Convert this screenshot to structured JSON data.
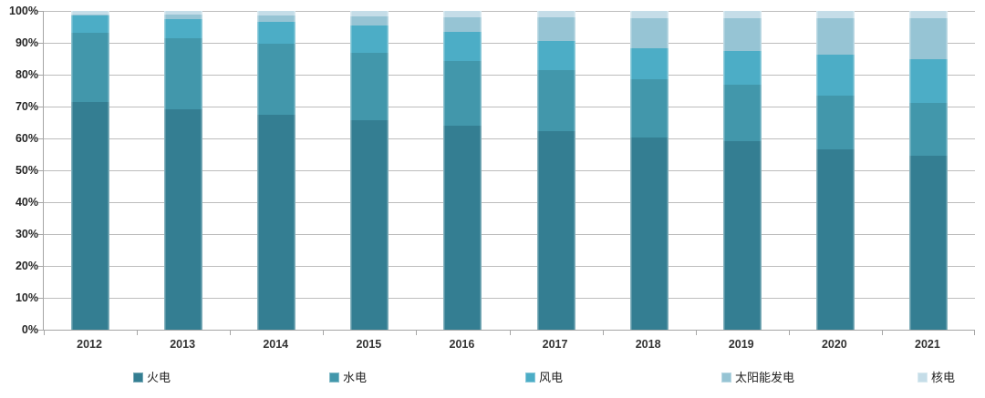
{
  "chart_data": {
    "type": "bar",
    "stacked": true,
    "percent_stacked": true,
    "title": "",
    "xlabel": "",
    "ylabel": "",
    "categories": [
      "2012",
      "2013",
      "2014",
      "2015",
      "2016",
      "2017",
      "2018",
      "2019",
      "2020",
      "2021"
    ],
    "series": [
      {
        "name": "火电",
        "color": "#347e92",
        "values": [
          71.5,
          69.1,
          67.4,
          65.7,
          64.0,
          62.2,
          60.2,
          59.2,
          56.6,
          54.6
        ]
      },
      {
        "name": "水电",
        "color": "#4297ab",
        "values": [
          21.7,
          22.3,
          22.2,
          21.2,
          20.2,
          19.3,
          18.5,
          17.7,
          16.8,
          16.5
        ]
      },
      {
        "name": "风电",
        "color": "#4cadc6",
        "values": [
          5.4,
          6.1,
          7.1,
          8.6,
          9.1,
          9.2,
          9.7,
          10.5,
          12.8,
          13.8
        ]
      },
      {
        "name": "太阳能发电",
        "color": "#96c4d4",
        "values": [
          0.3,
          1.3,
          1.8,
          2.7,
          4.7,
          7.3,
          9.2,
          10.2,
          11.5,
          12.9
        ]
      },
      {
        "name": "核电",
        "color": "#c5dde8",
        "values": [
          1.1,
          1.2,
          1.5,
          1.8,
          2.0,
          2.0,
          2.4,
          2.4,
          2.3,
          2.2
        ]
      }
    ],
    "ylim": [
      0,
      100
    ],
    "ytick_labels": [
      "0%",
      "10%",
      "20%",
      "30%",
      "40%",
      "50%",
      "60%",
      "70%",
      "80%",
      "90%",
      "100%"
    ],
    "grid": true,
    "gridline_color": "#bdbdbd",
    "axis_color": "#a6a6a6",
    "legend_position": "bottom"
  }
}
